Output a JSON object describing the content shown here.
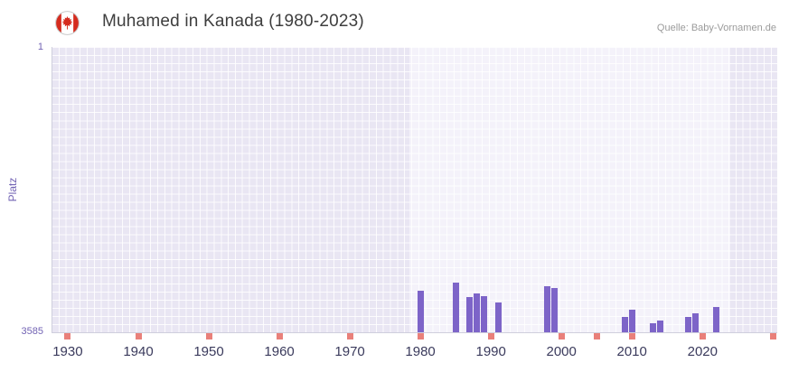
{
  "header": {
    "source": "Quelle: Baby-Vornamen.de",
    "flag_icon": "canada-flag-icon"
  },
  "chart_data": {
    "type": "bar",
    "title": "Muhamed in Kanada (1980-2023)",
    "ylabel": "Platz",
    "grid": true,
    "y_axis": {
      "min": 1,
      "max": 3585,
      "inverted": true,
      "top_tick_label": "1",
      "bottom_tick_label": "3585"
    },
    "x_axis": {
      "range": [
        1927.7,
        2030.6
      ],
      "ticks": [
        1930,
        1940,
        1950,
        1960,
        1970,
        1980,
        1990,
        2000,
        2010,
        2020
      ]
    },
    "highlight_band": {
      "from": 1978.5,
      "to": 2024
    },
    "series": [
      {
        "name": "Platz",
        "points": [
          {
            "year": 1980,
            "rank": 3060
          },
          {
            "year": 1985,
            "rank": 2960
          },
          {
            "year": 1987,
            "rank": 3140
          },
          {
            "year": 1988,
            "rank": 3100
          },
          {
            "year": 1989,
            "rank": 3130
          },
          {
            "year": 1991,
            "rank": 3210
          },
          {
            "year": 1998,
            "rank": 3010
          },
          {
            "year": 1999,
            "rank": 3030
          },
          {
            "year": 2009,
            "rank": 3390
          },
          {
            "year": 2010,
            "rank": 3300
          },
          {
            "year": 2013,
            "rank": 3470
          },
          {
            "year": 2014,
            "rank": 3440
          },
          {
            "year": 2018,
            "rank": 3390
          },
          {
            "year": 2019,
            "rank": 3350
          },
          {
            "year": 2022,
            "rank": 3270
          }
        ]
      }
    ],
    "no_data_tick_years": [
      1930,
      1940,
      1950,
      1960,
      1970,
      1980,
      1990,
      2000,
      2005,
      2010,
      2020,
      2030
    ],
    "colors": {
      "bar": "#7d64c8",
      "no_data_tick": "#e9807a",
      "plot_background": "#e9e6f3",
      "highlight_background": "#f4f2fa",
      "gridline": "#ffffff",
      "y_label_text": "#7263b4",
      "x_label_text": "#3a3a5c",
      "title_text": "#3e3e3e",
      "source_text": "#9b9b9b",
      "flag_red": "#d52b1e"
    }
  }
}
